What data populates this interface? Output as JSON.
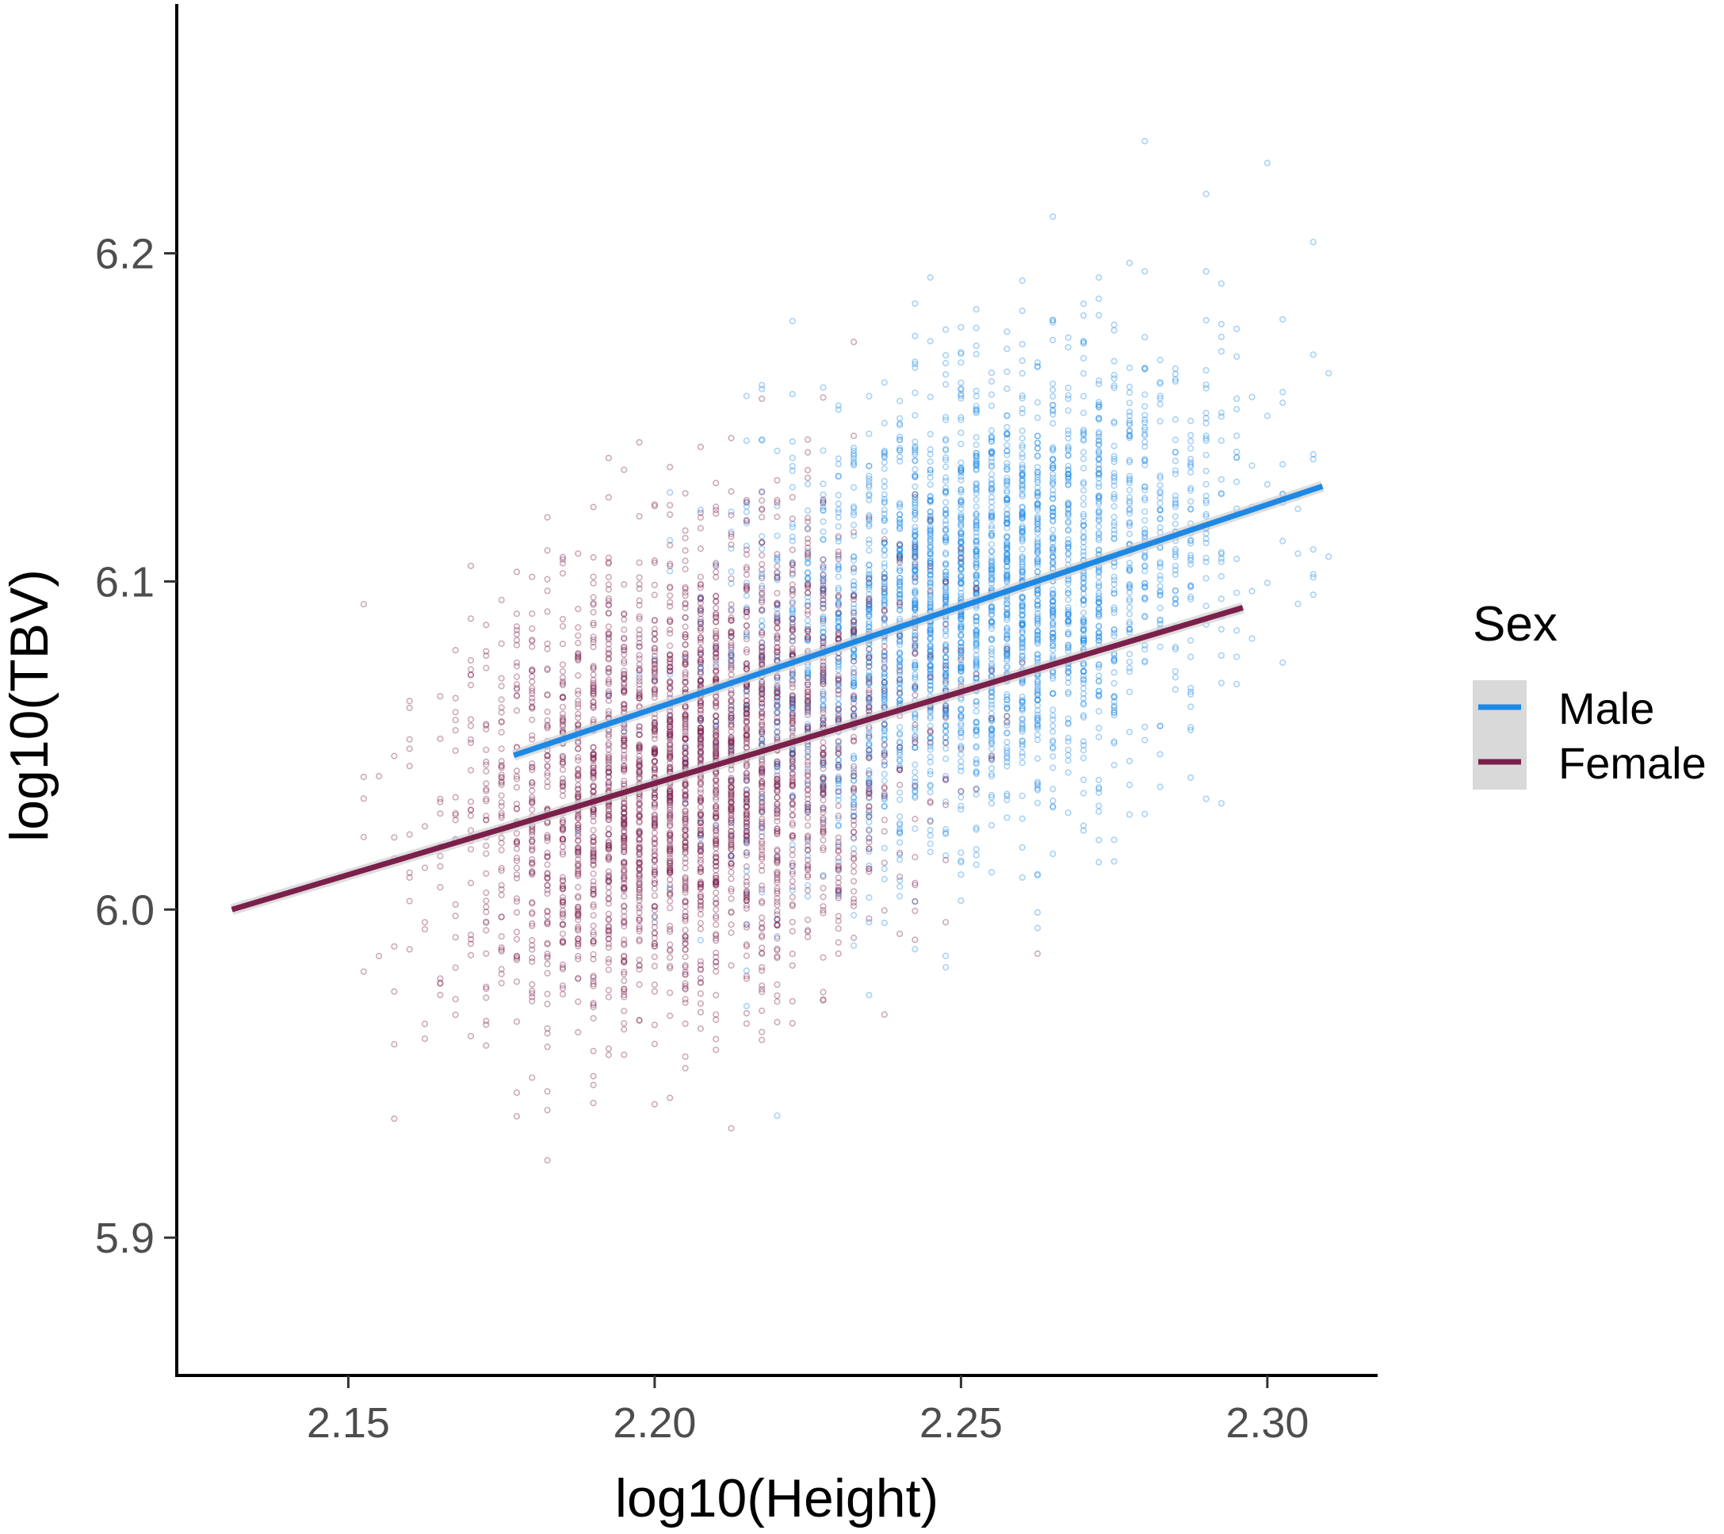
{
  "chart_data": {
    "type": "scatter",
    "title": "",
    "xlabel": "log10(Height)",
    "ylabel": "log10(TBV)",
    "xlim": [
      2.122,
      2.318
    ],
    "ylim": [
      5.858,
      6.276
    ],
    "x_ticks": [
      2.15,
      2.2,
      2.25,
      2.3
    ],
    "x_tick_labels": [
      "2.15",
      "2.20",
      "2.25",
      "2.30"
    ],
    "y_ticks": [
      5.9,
      6.0,
      6.1,
      6.2
    ],
    "y_tick_labels": [
      "5.9",
      "6.0",
      "6.1",
      "6.2"
    ],
    "grid": false,
    "legend": {
      "title": "Sex",
      "position": "right",
      "entries": [
        "Male",
        "Female"
      ]
    },
    "series": [
      {
        "name": "Male",
        "color": "#1e88e5",
        "point_cloud": {
          "x_levels_start": 2.175,
          "x_levels_end": 2.31,
          "x_level_step": 0.0025,
          "x_center": 2.252,
          "x_sd": 0.02,
          "y_residual_sd": 0.033,
          "n_points": 3200
        },
        "fit": {
          "x": [
            2.177,
            2.309
          ],
          "y": [
            6.047,
            6.129
          ]
        }
      },
      {
        "name": "Female",
        "color": "#7b1f4b",
        "point_cloud": {
          "x_levels_start": 2.13,
          "x_levels_end": 2.3,
          "x_level_step": 0.0025,
          "x_center": 2.205,
          "x_sd": 0.018,
          "y_residual_sd": 0.033,
          "n_points": 3200
        },
        "fit": {
          "x": [
            2.131,
            2.296
          ],
          "y": [
            6.0,
            6.092
          ]
        }
      }
    ]
  }
}
